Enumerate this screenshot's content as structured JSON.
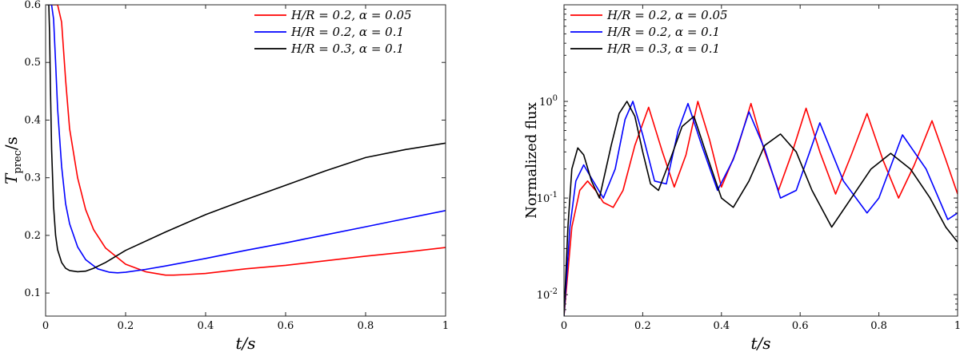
{
  "chart_data": [
    {
      "type": "line",
      "xlabel": "t/s",
      "ylabel": "T_prec/s",
      "ylabel_main": "T",
      "ylabel_sub": "prec",
      "ylabel_tail": "/s",
      "xlim": [
        0,
        1
      ],
      "ylim": [
        0.06,
        0.6
      ],
      "yscale": "linear",
      "grid": false,
      "legend_position": "top-right",
      "xticks": [
        0,
        0.2,
        0.4,
        0.6,
        0.8,
        1
      ],
      "xtick_labels": [
        "0",
        "0.2",
        "0.4",
        "0.6",
        "0.8",
        "1"
      ],
      "yticks": [
        0.1,
        0.2,
        0.3,
        0.4,
        0.5,
        0.6
      ],
      "ytick_labels": [
        "0.1",
        "0.2",
        "0.3",
        "0.4",
        "0.5",
        "0.6"
      ],
      "series": [
        {
          "name": "H/R = 0.2, α = 0.05",
          "color": "#ff0000",
          "x": [
            0.012,
            0.02,
            0.03,
            0.04,
            0.05,
            0.06,
            0.08,
            0.1,
            0.12,
            0.15,
            0.2,
            0.25,
            0.3,
            0.32,
            0.35,
            0.4,
            0.5,
            0.6,
            0.7,
            0.8,
            0.9,
            1.0
          ],
          "y": [
            0.6,
            0.6,
            0.6,
            0.57,
            0.47,
            0.385,
            0.3,
            0.245,
            0.21,
            0.178,
            0.15,
            0.137,
            0.131,
            0.131,
            0.132,
            0.134,
            0.142,
            0.148,
            0.156,
            0.164,
            0.171,
            0.179
          ]
        },
        {
          "name": "H/R = 0.2, α = 0.1",
          "color": "#0000ff",
          "x": [
            0.007,
            0.01,
            0.015,
            0.02,
            0.025,
            0.03,
            0.04,
            0.05,
            0.06,
            0.08,
            0.1,
            0.13,
            0.16,
            0.18,
            0.2,
            0.25,
            0.3,
            0.4,
            0.5,
            0.6,
            0.7,
            0.8,
            0.9,
            1.0
          ],
          "y": [
            0.6,
            0.6,
            0.6,
            0.575,
            0.5,
            0.42,
            0.32,
            0.255,
            0.22,
            0.18,
            0.158,
            0.142,
            0.136,
            0.135,
            0.136,
            0.141,
            0.147,
            0.16,
            0.174,
            0.187,
            0.201,
            0.215,
            0.229,
            0.243
          ]
        },
        {
          "name": "H/R = 0.3, α = 0.1",
          "color": "#000000",
          "x": [
            0.003,
            0.005,
            0.008,
            0.01,
            0.012,
            0.015,
            0.02,
            0.025,
            0.03,
            0.04,
            0.05,
            0.06,
            0.08,
            0.1,
            0.12,
            0.15,
            0.2,
            0.3,
            0.4,
            0.5,
            0.6,
            0.7,
            0.8,
            0.9,
            1.0
          ],
          "y": [
            0.6,
            0.6,
            0.6,
            0.55,
            0.46,
            0.35,
            0.25,
            0.2,
            0.175,
            0.153,
            0.143,
            0.139,
            0.137,
            0.138,
            0.143,
            0.153,
            0.174,
            0.206,
            0.236,
            0.262,
            0.287,
            0.312,
            0.335,
            0.349,
            0.36
          ]
        }
      ]
    },
    {
      "type": "line",
      "xlabel": "t/s",
      "ylabel": "Normalized flux",
      "xlim": [
        0,
        1
      ],
      "ylim": [
        0.006,
        10
      ],
      "yscale": "log",
      "grid": false,
      "legend_position": "top-left",
      "xticks": [
        0,
        0.2,
        0.4,
        0.6,
        0.8,
        1
      ],
      "xtick_labels": [
        "0",
        "0.2",
        "0.4",
        "0.6",
        "0.8",
        "1"
      ],
      "yticks": [
        0.01,
        0.1,
        1
      ],
      "ytick_bases": [
        "10",
        "10",
        "10"
      ],
      "ytick_exponents": [
        "-2",
        "-1",
        "0"
      ],
      "series": [
        {
          "name": "H/R = 0.2, α = 0.05",
          "color": "#ff0000",
          "x": [
            0,
            0.02,
            0.04,
            0.06,
            0.08,
            0.1,
            0.125,
            0.15,
            0.18,
            0.215,
            0.25,
            0.28,
            0.31,
            0.34,
            0.37,
            0.4,
            0.44,
            0.475,
            0.51,
            0.545,
            0.58,
            0.615,
            0.65,
            0.69,
            0.73,
            0.77,
            0.81,
            0.85,
            0.89,
            0.935,
            0.97,
            1.0
          ],
          "y": [
            0.006,
            0.05,
            0.12,
            0.15,
            0.12,
            0.09,
            0.08,
            0.12,
            0.35,
            0.87,
            0.3,
            0.13,
            0.28,
            1.0,
            0.4,
            0.13,
            0.32,
            0.95,
            0.3,
            0.12,
            0.3,
            0.85,
            0.3,
            0.11,
            0.28,
            0.75,
            0.25,
            0.1,
            0.22,
            0.63,
            0.25,
            0.11
          ]
        },
        {
          "name": "H/R = 0.2, α = 0.1",
          "color": "#0000ff",
          "x": [
            0,
            0.015,
            0.03,
            0.05,
            0.07,
            0.1,
            0.13,
            0.155,
            0.175,
            0.2,
            0.23,
            0.26,
            0.29,
            0.315,
            0.35,
            0.39,
            0.43,
            0.47,
            0.51,
            0.55,
            0.59,
            0.65,
            0.71,
            0.77,
            0.8,
            0.86,
            0.92,
            0.975,
            1.0
          ],
          "y": [
            0.006,
            0.05,
            0.15,
            0.22,
            0.16,
            0.1,
            0.2,
            0.65,
            1.0,
            0.45,
            0.15,
            0.14,
            0.5,
            0.95,
            0.35,
            0.12,
            0.25,
            0.78,
            0.32,
            0.1,
            0.12,
            0.6,
            0.15,
            0.07,
            0.1,
            0.45,
            0.2,
            0.06,
            0.07
          ]
        },
        {
          "name": "H/R = 0.3, α = 0.1",
          "color": "#000000",
          "x": [
            0,
            0.01,
            0.02,
            0.035,
            0.05,
            0.07,
            0.09,
            0.12,
            0.14,
            0.16,
            0.18,
            0.2,
            0.22,
            0.24,
            0.27,
            0.3,
            0.33,
            0.36,
            0.4,
            0.43,
            0.47,
            0.51,
            0.55,
            0.59,
            0.63,
            0.68,
            0.73,
            0.78,
            0.83,
            0.88,
            0.93,
            0.97,
            1.0
          ],
          "y": [
            0.006,
            0.05,
            0.2,
            0.33,
            0.28,
            0.15,
            0.1,
            0.35,
            0.75,
            1.0,
            0.7,
            0.3,
            0.14,
            0.12,
            0.25,
            0.55,
            0.7,
            0.3,
            0.1,
            0.08,
            0.15,
            0.35,
            0.46,
            0.3,
            0.12,
            0.05,
            0.1,
            0.2,
            0.29,
            0.2,
            0.1,
            0.05,
            0.035
          ]
        }
      ]
    }
  ]
}
